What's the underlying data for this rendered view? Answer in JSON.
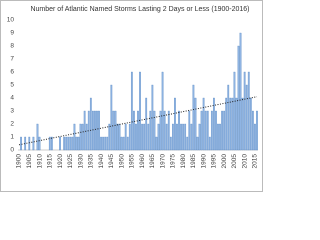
{
  "chart_data": {
    "type": "bar",
    "title": "Number of Atlantic Named Storms Lasting 2 Days or Less (1900-2016)",
    "categories": [
      "1900",
      null,
      null,
      null,
      null,
      "1905",
      null,
      null,
      null,
      null,
      "1910",
      null,
      null,
      null,
      null,
      "1915",
      null,
      null,
      null,
      null,
      "1920",
      null,
      null,
      null,
      null,
      "1925",
      null,
      null,
      null,
      null,
      "1930",
      null,
      null,
      null,
      null,
      "1935",
      null,
      null,
      null,
      null,
      "1940",
      null,
      null,
      null,
      null,
      "1945",
      null,
      null,
      null,
      null,
      "1950",
      null,
      null,
      null,
      null,
      "1955",
      null,
      null,
      null,
      null,
      "1960",
      null,
      null,
      null,
      null,
      "1965",
      null,
      null,
      null,
      null,
      "1970",
      null,
      null,
      null,
      null,
      "1975",
      null,
      null,
      null,
      null,
      "1980",
      null,
      null,
      null,
      null,
      "1985",
      null,
      null,
      null,
      null,
      "1990",
      null,
      null,
      null,
      null,
      "1995",
      null,
      null,
      null,
      null,
      "2000",
      null,
      null,
      null,
      null,
      "2005",
      null,
      null,
      null,
      null,
      "2010",
      null,
      null,
      null,
      null,
      "2015",
      null
    ],
    "values": [
      0,
      1,
      0,
      1,
      0,
      1,
      0,
      1,
      0,
      2,
      1,
      0,
      0,
      0,
      0,
      1,
      1,
      0,
      0,
      0,
      1,
      0,
      1,
      1,
      1,
      1,
      1,
      2,
      1,
      1,
      2,
      2,
      3,
      2,
      3,
      4,
      3,
      3,
      3,
      3,
      1,
      1,
      1,
      1,
      2,
      5,
      3,
      3,
      2,
      2,
      1,
      1,
      2,
      1,
      2,
      6,
      3,
      2,
      3,
      6,
      2,
      2,
      4,
      2,
      3,
      5,
      3,
      1,
      2,
      3,
      6,
      3,
      2,
      3,
      1,
      2,
      4,
      2,
      3,
      2,
      2,
      2,
      1,
      3,
      2,
      5,
      4,
      1,
      2,
      3,
      4,
      3,
      3,
      1,
      3,
      4,
      3,
      2,
      2,
      3,
      3,
      4,
      5,
      4,
      4,
      6,
      4,
      8,
      9,
      4,
      6,
      5,
      6,
      4,
      3,
      2,
      3
    ],
    "color": "#8fb4e3",
    "trend_line": [
      0.4,
      4.1
    ],
    "ylim": [
      0,
      10
    ],
    "yticks": [
      0,
      1,
      2,
      3,
      4,
      5,
      6,
      7,
      8,
      9,
      10
    ],
    "grid": false
  }
}
